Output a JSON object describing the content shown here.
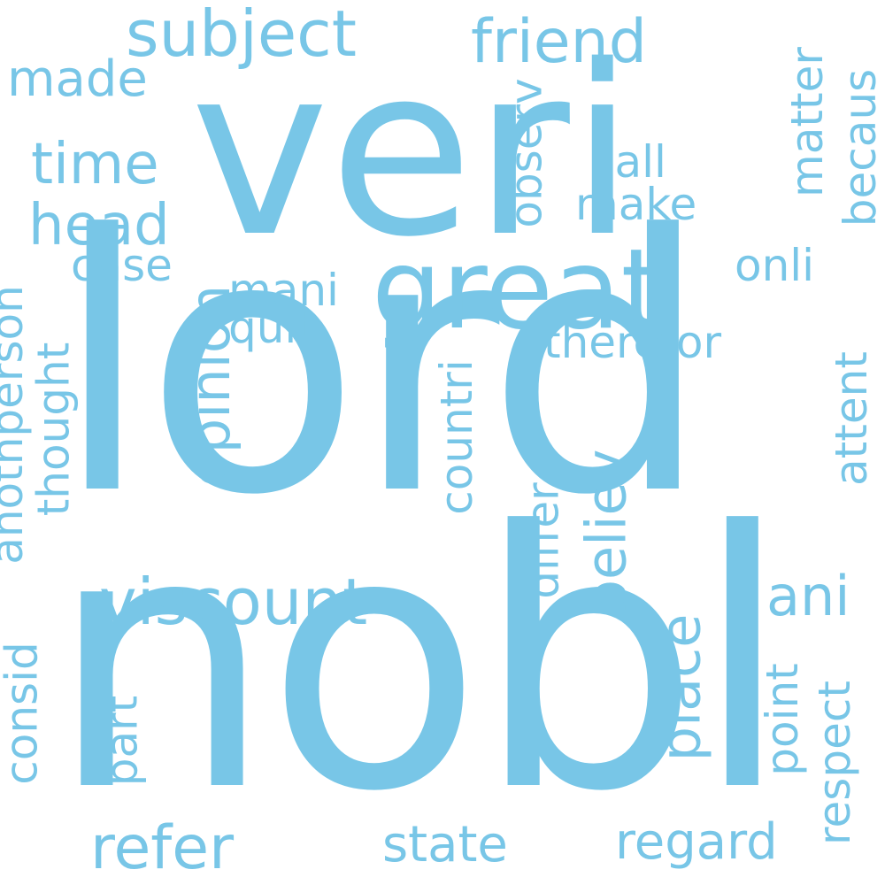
{
  "color": "#78C6E7",
  "words": [
    {
      "text": "veri",
      "weight": 1.0
    },
    {
      "text": "lord",
      "weight": 1.0
    },
    {
      "text": "nobl",
      "weight": 1.0
    },
    {
      "text": "great",
      "weight": 0.6
    },
    {
      "text": "subject",
      "weight": 0.3
    },
    {
      "text": "friend",
      "weight": 0.3
    },
    {
      "text": "made",
      "weight": 0.2
    },
    {
      "text": "time",
      "weight": 0.3
    },
    {
      "text": "head",
      "weight": 0.3
    },
    {
      "text": "case",
      "weight": 0.2
    },
    {
      "text": "call",
      "weight": 0.2
    },
    {
      "text": "make",
      "weight": 0.2
    },
    {
      "text": "observ",
      "weight": 0.2
    },
    {
      "text": "matter",
      "weight": 0.2
    },
    {
      "text": "becaus",
      "weight": 0.2
    },
    {
      "text": "mani",
      "weight": 0.2
    },
    {
      "text": "quit",
      "weight": 0.2
    },
    {
      "text": "onli",
      "weight": 0.2
    },
    {
      "text": "therefor",
      "weight": 0.2
    },
    {
      "text": "opinion",
      "weight": 0.3
    },
    {
      "text": "anothperson",
      "weight": 0.2
    },
    {
      "text": "thought",
      "weight": 0.2
    },
    {
      "text": "countri",
      "weight": 0.2
    },
    {
      "text": "attent",
      "weight": 0.2
    },
    {
      "text": "believ",
      "weight": 0.3
    },
    {
      "text": "differ",
      "weight": 0.2
    },
    {
      "text": "viscount",
      "weight": 0.3
    },
    {
      "text": "ani",
      "weight": 0.3
    },
    {
      "text": "consid",
      "weight": 0.2
    },
    {
      "text": "part",
      "weight": 0.2
    },
    {
      "text": "place",
      "weight": 0.3
    },
    {
      "text": "point",
      "weight": 0.2
    },
    {
      "text": "respect",
      "weight": 0.2
    },
    {
      "text": "refer",
      "weight": 0.3
    },
    {
      "text": "state",
      "weight": 0.2
    },
    {
      "text": "regard",
      "weight": 0.2
    }
  ]
}
